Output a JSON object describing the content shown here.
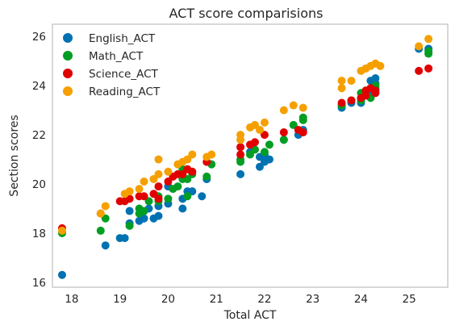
{
  "chart_data": {
    "type": "scatter",
    "title": "ACT score comparisions",
    "xlabel": "Total ACT",
    "ylabel": "Section scores",
    "xlim": [
      17.6,
      25.8
    ],
    "ylim": [
      15.8,
      26.5
    ],
    "xticks": [
      "18",
      "19",
      "20",
      "21",
      "22",
      "23",
      "24",
      "25"
    ],
    "yticks": [
      "16",
      "18",
      "20",
      "22",
      "24",
      "26"
    ],
    "grid": false,
    "legend_position": "top-left",
    "series": [
      {
        "name": "English_ACT",
        "color": "#0072B2",
        "points": [
          [
            17.8,
            16.3
          ],
          [
            18.7,
            17.5
          ],
          [
            19.0,
            17.8
          ],
          [
            19.1,
            17.8
          ],
          [
            19.2,
            18.4
          ],
          [
            19.4,
            18.5
          ],
          [
            19.5,
            18.6
          ],
          [
            19.7,
            18.6
          ],
          [
            19.8,
            18.7
          ],
          [
            19.2,
            18.9
          ],
          [
            19.6,
            19.0
          ],
          [
            19.8,
            19.1
          ],
          [
            20.0,
            19.2
          ],
          [
            20.3,
            19.0
          ],
          [
            20.4,
            19.7
          ],
          [
            20.5,
            19.7
          ],
          [
            20.3,
            19.4
          ],
          [
            20.7,
            19.5
          ],
          [
            20.0,
            19.9
          ],
          [
            20.8,
            20.2
          ],
          [
            21.5,
            20.4
          ],
          [
            21.9,
            20.7
          ],
          [
            22.0,
            20.9
          ],
          [
            21.9,
            21.1
          ],
          [
            22.1,
            21.0
          ],
          [
            21.7,
            21.3
          ],
          [
            22.0,
            21.2
          ],
          [
            22.4,
            21.8
          ],
          [
            22.7,
            22.0
          ],
          [
            22.8,
            22.2
          ],
          [
            23.6,
            23.1
          ],
          [
            23.6,
            23.2
          ],
          [
            23.8,
            23.3
          ],
          [
            24.0,
            23.3
          ],
          [
            24.1,
            23.6
          ],
          [
            24.2,
            23.8
          ],
          [
            24.2,
            24.2
          ],
          [
            24.3,
            24.1
          ],
          [
            24.3,
            24.3
          ],
          [
            25.2,
            25.5
          ],
          [
            25.4,
            25.5
          ]
        ]
      },
      {
        "name": "Math_ACT",
        "color": "#009E23",
        "points": [
          [
            17.8,
            18.0
          ],
          [
            18.6,
            18.1
          ],
          [
            18.7,
            18.6
          ],
          [
            19.2,
            18.3
          ],
          [
            19.4,
            18.8
          ],
          [
            19.5,
            18.9
          ],
          [
            19.4,
            19.0
          ],
          [
            19.6,
            19.3
          ],
          [
            19.8,
            19.3
          ],
          [
            19.8,
            19.5
          ],
          [
            20.0,
            19.4
          ],
          [
            20.1,
            19.8
          ],
          [
            20.2,
            19.9
          ],
          [
            20.3,
            20.2
          ],
          [
            20.4,
            20.2
          ],
          [
            20.3,
            20.6
          ],
          [
            20.5,
            20.4
          ],
          [
            20.4,
            19.5
          ],
          [
            20.8,
            20.3
          ],
          [
            20.9,
            20.8
          ],
          [
            21.5,
            20.9
          ],
          [
            21.5,
            21.0
          ],
          [
            21.7,
            21.2
          ],
          [
            21.8,
            21.4
          ],
          [
            22.0,
            21.3
          ],
          [
            22.1,
            21.6
          ],
          [
            22.4,
            21.8
          ],
          [
            22.6,
            22.4
          ],
          [
            22.8,
            22.6
          ],
          [
            22.8,
            22.7
          ],
          [
            23.6,
            23.2
          ],
          [
            23.8,
            23.4
          ],
          [
            24.0,
            23.4
          ],
          [
            24.0,
            23.7
          ],
          [
            24.1,
            23.8
          ],
          [
            24.2,
            23.5
          ],
          [
            24.3,
            23.9
          ],
          [
            24.3,
            24.0
          ],
          [
            25.4,
            25.3
          ],
          [
            25.4,
            25.4
          ]
        ]
      },
      {
        "name": "Science_ACT",
        "color": "#E10000",
        "points": [
          [
            17.8,
            18.2
          ],
          [
            18.6,
            18.8
          ],
          [
            19.0,
            19.3
          ],
          [
            19.1,
            19.3
          ],
          [
            19.2,
            19.4
          ],
          [
            19.4,
            19.5
          ],
          [
            19.5,
            19.5
          ],
          [
            19.7,
            19.6
          ],
          [
            19.8,
            19.4
          ],
          [
            19.8,
            19.9
          ],
          [
            20.0,
            20.1
          ],
          [
            20.1,
            20.3
          ],
          [
            20.2,
            20.4
          ],
          [
            20.3,
            20.4
          ],
          [
            20.4,
            20.6
          ],
          [
            20.5,
            20.5
          ],
          [
            20.8,
            20.9
          ],
          [
            21.5,
            21.2
          ],
          [
            21.5,
            21.5
          ],
          [
            21.7,
            21.6
          ],
          [
            21.8,
            21.7
          ],
          [
            22.0,
            22.0
          ],
          [
            22.4,
            22.1
          ],
          [
            22.7,
            22.2
          ],
          [
            22.8,
            22.1
          ],
          [
            23.6,
            23.3
          ],
          [
            23.8,
            23.4
          ],
          [
            24.0,
            23.5
          ],
          [
            24.1,
            23.6
          ],
          [
            24.1,
            23.8
          ],
          [
            24.2,
            23.9
          ],
          [
            24.3,
            23.7
          ],
          [
            24.3,
            23.8
          ],
          [
            25.2,
            24.6
          ],
          [
            25.4,
            24.7
          ]
        ]
      },
      {
        "name": "Reading_ACT",
        "color": "#F5A000",
        "points": [
          [
            17.8,
            18.1
          ],
          [
            18.6,
            18.8
          ],
          [
            18.7,
            19.1
          ],
          [
            19.1,
            19.6
          ],
          [
            19.2,
            19.7
          ],
          [
            19.4,
            19.8
          ],
          [
            19.5,
            20.1
          ],
          [
            19.7,
            20.2
          ],
          [
            19.8,
            20.4
          ],
          [
            19.8,
            21.0
          ],
          [
            20.0,
            20.5
          ],
          [
            20.2,
            20.8
          ],
          [
            20.3,
            20.9
          ],
          [
            20.4,
            21.0
          ],
          [
            20.5,
            21.2
          ],
          [
            20.8,
            21.1
          ],
          [
            20.9,
            21.2
          ],
          [
            21.5,
            21.8
          ],
          [
            21.5,
            22.0
          ],
          [
            21.7,
            22.3
          ],
          [
            21.8,
            22.4
          ],
          [
            21.9,
            22.2
          ],
          [
            22.0,
            22.5
          ],
          [
            22.4,
            23.0
          ],
          [
            22.6,
            23.2
          ],
          [
            22.8,
            23.1
          ],
          [
            23.6,
            23.9
          ],
          [
            23.6,
            24.2
          ],
          [
            23.8,
            24.2
          ],
          [
            24.0,
            24.6
          ],
          [
            24.1,
            24.7
          ],
          [
            24.2,
            24.8
          ],
          [
            24.3,
            24.9
          ],
          [
            24.4,
            24.8
          ],
          [
            25.2,
            25.6
          ],
          [
            25.4,
            25.9
          ]
        ]
      }
    ]
  }
}
